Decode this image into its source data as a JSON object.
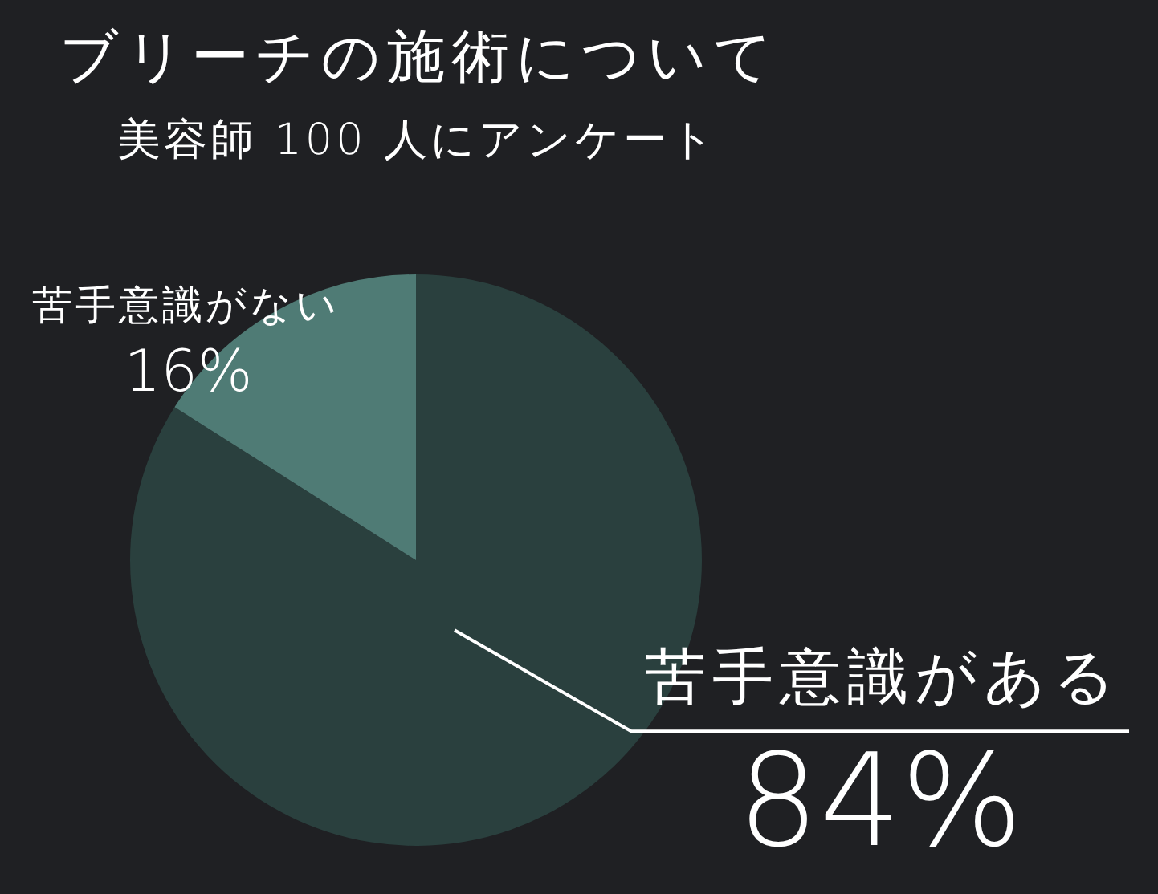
{
  "chart_data": {
    "type": "pie",
    "title": "ブリーチの施術について",
    "subtitle": "美容師 100 人にアンケート",
    "categories": [
      "苦手意識がある",
      "苦手意識がない"
    ],
    "values": [
      84,
      16
    ],
    "colors": [
      "#2a403e",
      "#4f7b75"
    ],
    "value_labels": [
      "84%",
      "16%"
    ]
  }
}
